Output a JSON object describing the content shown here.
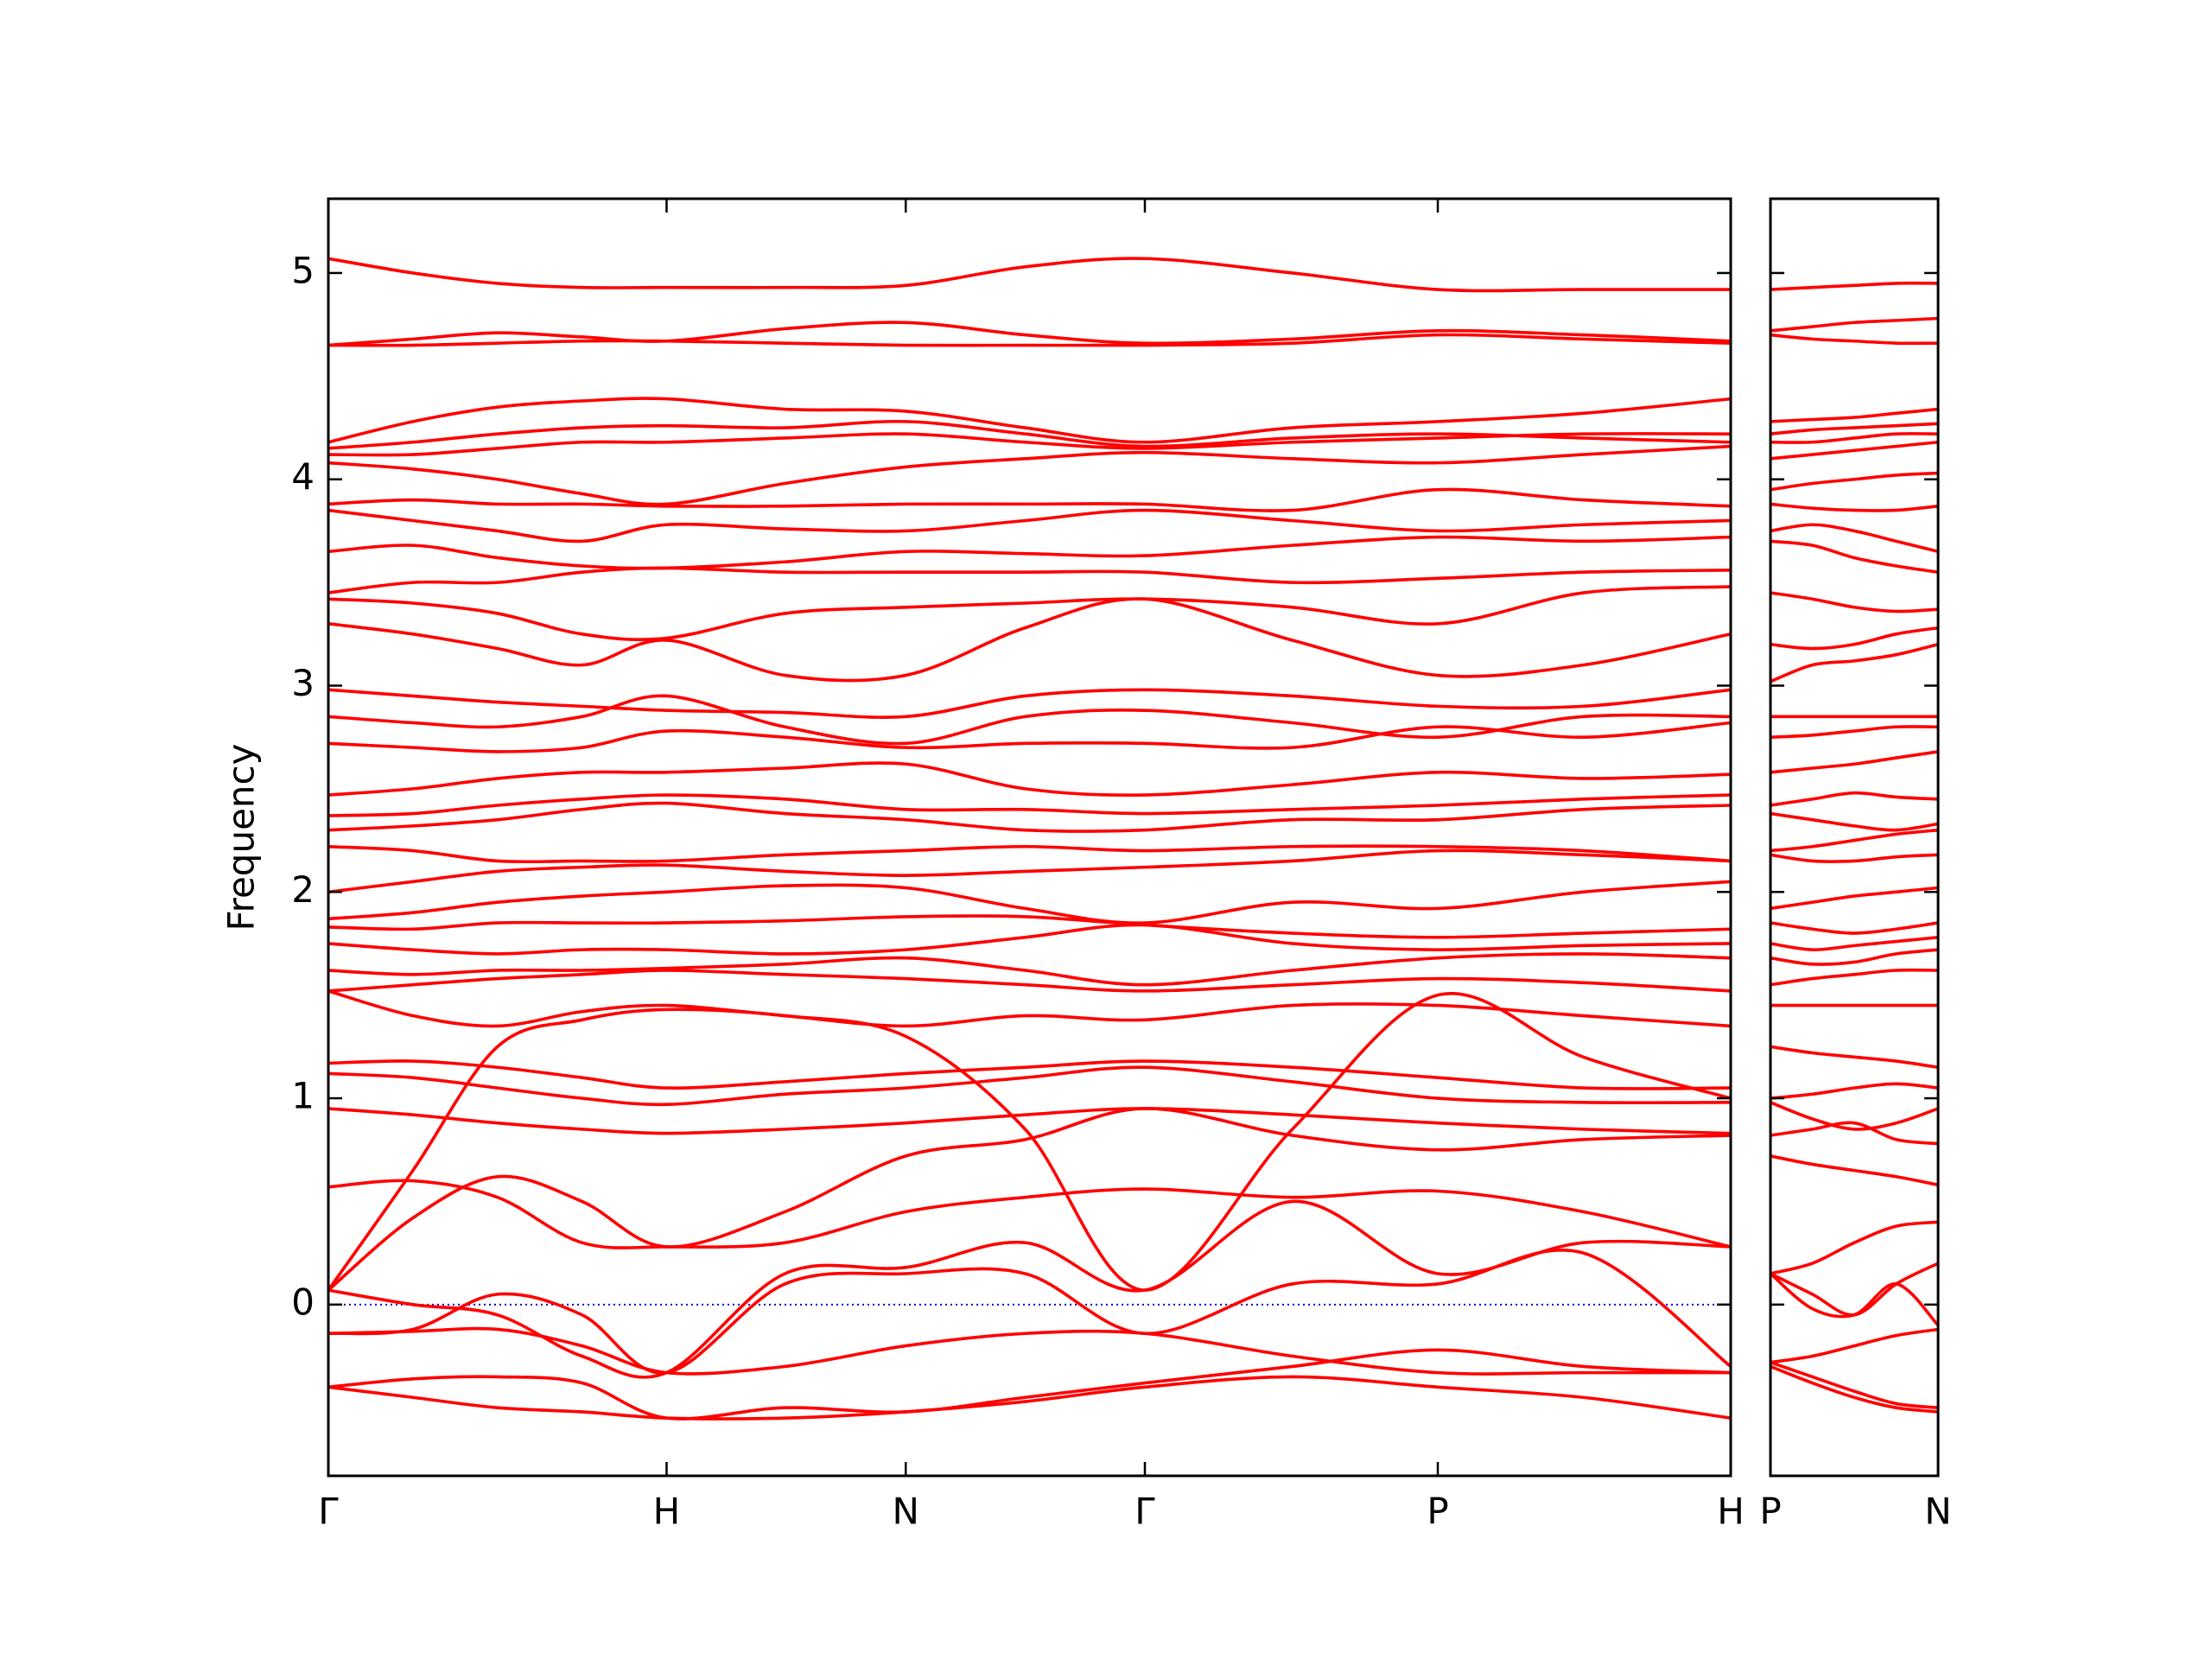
{
  "chart_data": [
    {
      "type": "line",
      "ylabel": "Frequency",
      "color": "#ff0000",
      "x": [
        0,
        0.25,
        0.5,
        0.75,
        1,
        1.35,
        1.707,
        2.06,
        2.414,
        2.85,
        3.28,
        3.71,
        4.146
      ],
      "xlim": [
        0,
        4.146
      ],
      "xticks": [
        {
          "value": 0,
          "label": "Γ"
        },
        {
          "value": 1,
          "label": "H"
        },
        {
          "value": 1.707,
          "label": "N"
        },
        {
          "value": 2.414,
          "label": "Γ"
        },
        {
          "value": 3.28,
          "label": "P"
        },
        {
          "value": 4.146,
          "label": "H"
        }
      ],
      "ylim": [
        -0.83,
        5.36
      ],
      "yticks": [
        0,
        1,
        2,
        3,
        4,
        5
      ],
      "show_ytick_labels": true,
      "reference_line": {
        "y": 0,
        "color": "#0000cc",
        "style": "dotted"
      },
      "series": [
        {
          "values": [
            5.07,
            5.0,
            4.95,
            4.93,
            4.93,
            4.93,
            4.94,
            5.03,
            5.07,
            5.0,
            4.92,
            4.92,
            4.92
          ]
        },
        {
          "values": [
            4.65,
            4.68,
            4.71,
            4.69,
            4.67,
            4.73,
            4.76,
            4.7,
            4.66,
            4.68,
            4.72,
            4.7,
            4.67
          ]
        },
        {
          "values": [
            4.65,
            4.65,
            4.66,
            4.67,
            4.67,
            4.66,
            4.65,
            4.65,
            4.65,
            4.66,
            4.7,
            4.68,
            4.66
          ]
        },
        {
          "values": [
            4.18,
            4.28,
            4.35,
            4.38,
            4.39,
            4.34,
            4.33,
            4.25,
            4.18,
            4.25,
            4.28,
            4.32,
            4.39
          ]
        },
        {
          "values": [
            4.15,
            4.18,
            4.22,
            4.25,
            4.26,
            4.25,
            4.28,
            4.22,
            4.16,
            4.2,
            4.22,
            4.2,
            4.18
          ]
        },
        {
          "values": [
            4.12,
            4.12,
            4.15,
            4.18,
            4.18,
            4.2,
            4.22,
            4.18,
            4.15,
            4.18,
            4.2,
            4.22,
            4.22
          ]
        },
        {
          "values": [
            4.08,
            4.05,
            4.0,
            3.93,
            3.88,
            3.98,
            4.06,
            4.1,
            4.13,
            4.1,
            4.08,
            4.12,
            4.16
          ]
        },
        {
          "values": [
            3.88,
            3.9,
            3.88,
            3.88,
            3.87,
            3.87,
            3.88,
            3.88,
            3.88,
            3.85,
            3.95,
            3.9,
            3.87
          ]
        },
        {
          "values": [
            3.85,
            3.8,
            3.75,
            3.7,
            3.78,
            3.76,
            3.75,
            3.8,
            3.85,
            3.8,
            3.75,
            3.78,
            3.8
          ]
        },
        {
          "values": [
            3.65,
            3.68,
            3.62,
            3.58,
            3.57,
            3.6,
            3.65,
            3.64,
            3.63,
            3.68,
            3.72,
            3.7,
            3.72
          ]
        },
        {
          "values": [
            3.45,
            3.5,
            3.5,
            3.55,
            3.57,
            3.55,
            3.55,
            3.55,
            3.55,
            3.5,
            3.52,
            3.55,
            3.56
          ]
        },
        {
          "values": [
            3.42,
            3.4,
            3.35,
            3.25,
            3.23,
            3.35,
            3.38,
            3.4,
            3.42,
            3.38,
            3.3,
            3.45,
            3.48
          ]
        },
        {
          "values": [
            3.3,
            3.25,
            3.18,
            3.1,
            3.22,
            3.05,
            3.05,
            3.28,
            3.42,
            3.22,
            3.05,
            3.1,
            3.25
          ]
        },
        {
          "values": [
            2.98,
            2.95,
            2.92,
            2.9,
            2.88,
            2.87,
            2.85,
            2.95,
            2.98,
            2.95,
            2.9,
            2.9,
            2.98
          ]
        },
        {
          "values": [
            2.85,
            2.82,
            2.8,
            2.85,
            2.95,
            2.8,
            2.72,
            2.85,
            2.88,
            2.82,
            2.75,
            2.85,
            2.85
          ]
        },
        {
          "values": [
            2.72,
            2.7,
            2.68,
            2.7,
            2.78,
            2.75,
            2.7,
            2.72,
            2.72,
            2.7,
            2.8,
            2.75,
            2.82
          ]
        },
        {
          "values": [
            2.47,
            2.5,
            2.55,
            2.58,
            2.58,
            2.6,
            2.62,
            2.5,
            2.47,
            2.52,
            2.58,
            2.55,
            2.57
          ]
        },
        {
          "values": [
            2.37,
            2.38,
            2.42,
            2.45,
            2.47,
            2.45,
            2.4,
            2.4,
            2.38,
            2.4,
            2.42,
            2.45,
            2.47
          ]
        },
        {
          "values": [
            2.3,
            2.32,
            2.35,
            2.4,
            2.43,
            2.38,
            2.35,
            2.3,
            2.3,
            2.35,
            2.35,
            2.4,
            2.42
          ]
        },
        {
          "values": [
            2.22,
            2.2,
            2.15,
            2.15,
            2.15,
            2.18,
            2.2,
            2.22,
            2.2,
            2.22,
            2.22,
            2.2,
            2.15
          ]
        },
        {
          "values": [
            2.0,
            2.05,
            2.1,
            2.12,
            2.13,
            2.1,
            2.08,
            2.1,
            2.12,
            2.15,
            2.2,
            2.18,
            2.15
          ]
        },
        {
          "values": [
            1.87,
            1.9,
            1.95,
            1.98,
            2.0,
            2.03,
            2.02,
            1.92,
            1.85,
            1.95,
            1.92,
            2.0,
            2.05
          ]
        },
        {
          "values": [
            1.83,
            1.82,
            1.85,
            1.85,
            1.85,
            1.86,
            1.88,
            1.88,
            1.84,
            1.8,
            1.78,
            1.8,
            1.82
          ]
        },
        {
          "values": [
            1.75,
            1.72,
            1.7,
            1.72,
            1.72,
            1.7,
            1.72,
            1.78,
            1.84,
            1.75,
            1.72,
            1.74,
            1.75
          ]
        },
        {
          "values": [
            1.62,
            1.6,
            1.62,
            1.62,
            1.63,
            1.65,
            1.68,
            1.62,
            1.55,
            1.62,
            1.68,
            1.7,
            1.68
          ]
        },
        {
          "values": [
            1.52,
            1.55,
            1.58,
            1.6,
            1.62,
            1.6,
            1.58,
            1.55,
            1.52,
            1.55,
            1.58,
            1.56,
            1.52
          ]
        },
        {
          "values": [
            1.52,
            1.4,
            1.35,
            1.42,
            1.45,
            1.4,
            1.35,
            1.4,
            1.38,
            1.45,
            1.45,
            1.4,
            1.35
          ]
        },
        {
          "values": [
            1.17,
            1.18,
            1.15,
            1.1,
            1.05,
            1.08,
            1.12,
            1.15,
            1.18,
            1.15,
            1.1,
            1.05,
            1.05
          ]
        },
        {
          "values": [
            1.12,
            1.1,
            1.05,
            1.0,
            0.97,
            1.02,
            1.05,
            1.1,
            1.15,
            1.08,
            1.0,
            0.98,
            0.98
          ]
        },
        {
          "values": [
            0.95,
            0.92,
            0.88,
            0.85,
            0.83,
            0.85,
            0.88,
            0.92,
            0.95,
            0.92,
            0.88,
            0.85,
            0.83
          ]
        },
        {
          "values": [
            0.57,
            0.6,
            0.52,
            0.3,
            0.28,
            0.3,
            0.45,
            0.52,
            0.56,
            0.52,
            0.55,
            0.45,
            0.28
          ]
        },
        {
          "values": [
            0.07,
            0.42,
            0.62,
            0.5,
            0.28,
            0.45,
            0.72,
            0.8,
            0.95,
            0.82,
            0.75,
            0.8,
            0.82
          ]
        },
        {
          "values": [
            0.07,
            0.65,
            1.25,
            1.38,
            1.43,
            1.4,
            1.3,
            0.85,
            0.07,
            0.85,
            1.5,
            1.2,
            1.0
          ]
        },
        {
          "values": [
            0.07,
            0.0,
            -0.05,
            -0.25,
            -0.33,
            0.15,
            0.18,
            0.3,
            0.07,
            0.5,
            0.15,
            0.3,
            0.28
          ]
        },
        {
          "values": [
            -0.14,
            -0.12,
            0.05,
            -0.05,
            -0.33,
            0.1,
            0.15,
            0.15,
            -0.14,
            0.1,
            0.1,
            0.25,
            -0.3
          ]
        },
        {
          "values": [
            -0.14,
            -0.13,
            -0.12,
            -0.2,
            -0.33,
            -0.3,
            -0.2,
            -0.14,
            -0.14,
            -0.25,
            -0.33,
            -0.33,
            -0.33
          ]
        },
        {
          "values": [
            -0.4,
            -0.36,
            -0.35,
            -0.38,
            -0.55,
            -0.5,
            -0.52,
            -0.45,
            -0.38,
            -0.3,
            -0.22,
            -0.3,
            -0.33
          ]
        },
        {
          "values": [
            -0.4,
            -0.45,
            -0.5,
            -0.52,
            -0.55,
            -0.55,
            -0.52,
            -0.47,
            -0.4,
            -0.35,
            -0.4,
            -0.45,
            -0.55
          ]
        }
      ]
    },
    {
      "type": "line",
      "color": "#ff0000",
      "x": [
        0,
        0.125,
        0.25,
        0.375,
        0.5
      ],
      "xlim": [
        0,
        0.5
      ],
      "xticks": [
        {
          "value": 0,
          "label": "P"
        },
        {
          "value": 0.5,
          "label": "N"
        }
      ],
      "ylim": [
        -0.83,
        5.36
      ],
      "yticks": [
        0,
        1,
        2,
        3,
        4,
        5
      ],
      "show_ytick_labels": false,
      "series": [
        {
          "values": [
            4.92,
            4.93,
            4.94,
            4.95,
            4.95
          ]
        },
        {
          "values": [
            4.72,
            4.74,
            4.76,
            4.77,
            4.78
          ]
        },
        {
          "values": [
            4.7,
            4.68,
            4.67,
            4.66,
            4.66
          ]
        },
        {
          "values": [
            4.28,
            4.29,
            4.3,
            4.32,
            4.34
          ]
        },
        {
          "values": [
            4.22,
            4.24,
            4.25,
            4.26,
            4.27
          ]
        },
        {
          "values": [
            4.18,
            4.18,
            4.2,
            4.22,
            4.22
          ]
        },
        {
          "values": [
            4.1,
            4.12,
            4.14,
            4.16,
            4.18
          ]
        },
        {
          "values": [
            3.95,
            3.98,
            4.0,
            4.02,
            4.03
          ]
        },
        {
          "values": [
            3.88,
            3.86,
            3.85,
            3.85,
            3.87
          ]
        },
        {
          "values": [
            3.75,
            3.78,
            3.75,
            3.7,
            3.65
          ]
        },
        {
          "values": [
            3.7,
            3.68,
            3.62,
            3.58,
            3.55
          ]
        },
        {
          "values": [
            3.45,
            3.42,
            3.38,
            3.36,
            3.37
          ]
        },
        {
          "values": [
            3.2,
            3.18,
            3.2,
            3.25,
            3.28
          ]
        },
        {
          "values": [
            3.02,
            3.1,
            3.12,
            3.15,
            3.2
          ]
        },
        {
          "values": [
            2.85,
            2.85,
            2.85,
            2.85,
            2.85
          ]
        },
        {
          "values": [
            2.75,
            2.76,
            2.78,
            2.8,
            2.8
          ]
        },
        {
          "values": [
            2.58,
            2.6,
            2.62,
            2.65,
            2.68
          ]
        },
        {
          "values": [
            2.42,
            2.45,
            2.48,
            2.46,
            2.45
          ]
        },
        {
          "values": [
            2.38,
            2.35,
            2.32,
            2.3,
            2.33
          ]
        },
        {
          "values": [
            2.2,
            2.22,
            2.25,
            2.28,
            2.3
          ]
        },
        {
          "values": [
            2.18,
            2.15,
            2.15,
            2.17,
            2.18
          ]
        },
        {
          "values": [
            1.92,
            1.95,
            1.98,
            2.0,
            2.02
          ]
        },
        {
          "values": [
            1.85,
            1.82,
            1.8,
            1.82,
            1.85
          ]
        },
        {
          "values": [
            1.75,
            1.72,
            1.74,
            1.76,
            1.78
          ]
        },
        {
          "values": [
            1.68,
            1.65,
            1.66,
            1.7,
            1.72
          ]
        },
        {
          "values": [
            1.55,
            1.58,
            1.6,
            1.62,
            1.62
          ]
        },
        {
          "values": [
            1.45,
            1.45,
            1.45,
            1.45,
            1.45
          ]
        },
        {
          "values": [
            1.25,
            1.22,
            1.2,
            1.18,
            1.15
          ]
        },
        {
          "values": [
            1.0,
            1.02,
            1.05,
            1.07,
            1.05
          ]
        },
        {
          "values": [
            0.98,
            0.9,
            0.85,
            0.88,
            0.95
          ]
        },
        {
          "values": [
            0.82,
            0.85,
            0.88,
            0.8,
            0.78
          ]
        },
        {
          "values": [
            0.72,
            0.68,
            0.65,
            0.62,
            0.58
          ]
        },
        {
          "values": [
            0.15,
            0.2,
            0.3,
            0.38,
            0.4
          ]
        },
        {
          "values": [
            0.15,
            0.05,
            -0.05,
            0.1,
            0.2
          ]
        },
        {
          "values": [
            0.15,
            -0.02,
            -0.05,
            0.1,
            -0.1
          ]
        },
        {
          "values": [
            -0.28,
            -0.25,
            -0.2,
            -0.15,
            -0.12
          ]
        },
        {
          "values": [
            -0.28,
            -0.35,
            -0.42,
            -0.48,
            -0.5
          ]
        },
        {
          "values": [
            -0.3,
            -0.38,
            -0.45,
            -0.5,
            -0.52
          ]
        }
      ]
    }
  ]
}
